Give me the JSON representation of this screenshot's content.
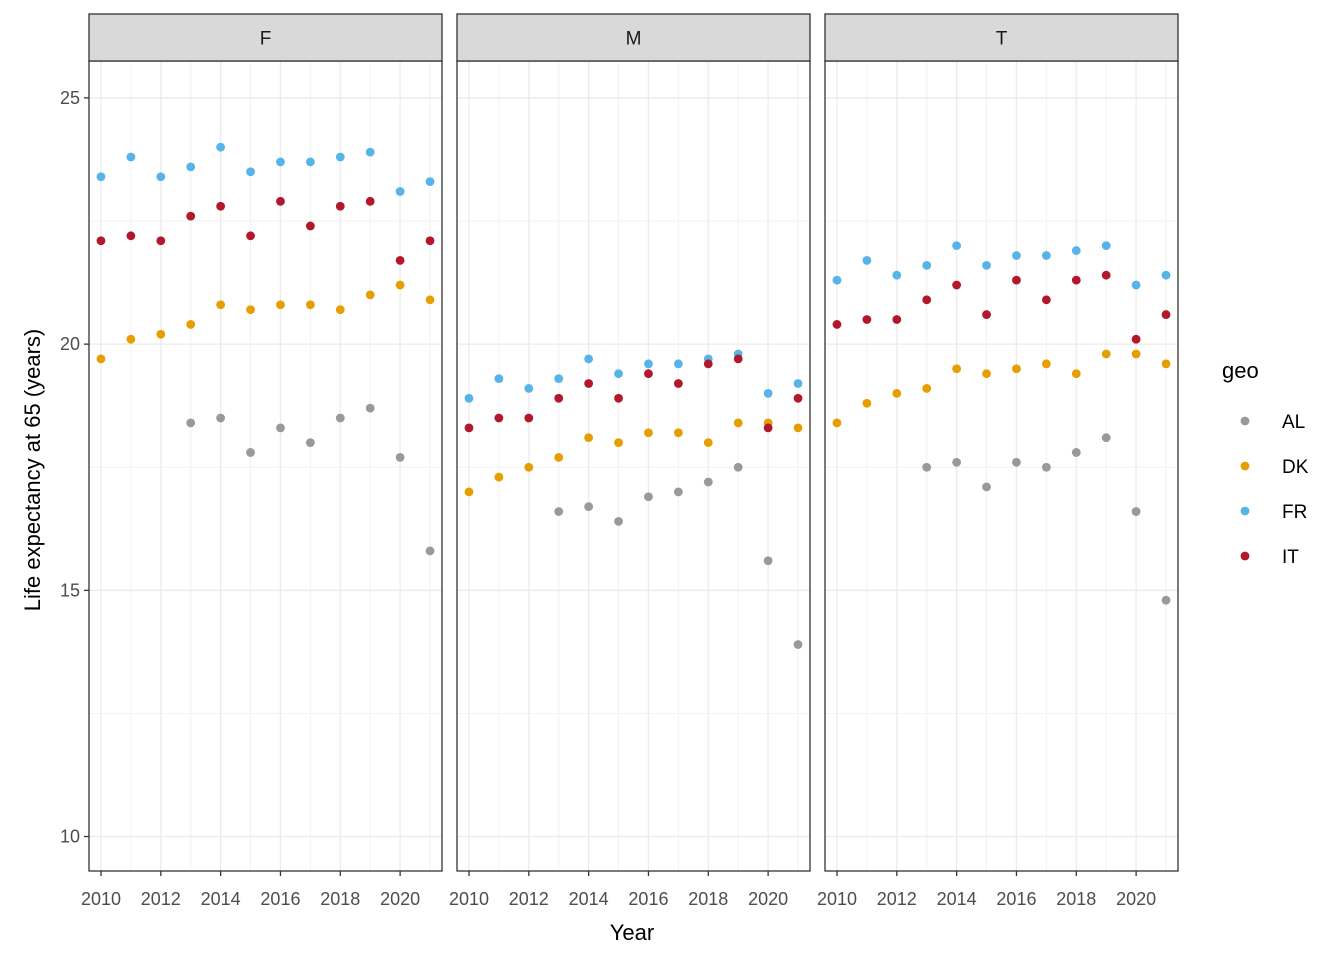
{
  "chart_data": {
    "type": "scatter",
    "facets": [
      "F",
      "M",
      "T"
    ],
    "xlabel": "Year",
    "ylabel": "Life expectancy at 65 (years)",
    "xlim": [
      2009.6,
      2021.4
    ],
    "ylim": [
      9.3,
      25.75
    ],
    "xticks": [
      2010,
      2012,
      2014,
      2016,
      2018,
      2020
    ],
    "yticks": [
      10,
      15,
      20,
      25
    ],
    "legend": {
      "title": "geo",
      "position": "right",
      "entries": [
        "AL",
        "DK",
        "FR",
        "IT"
      ]
    },
    "colors": {
      "AL": "#999999",
      "DK": "#E69F00",
      "FR": "#56B4E9",
      "IT": "#B2182B"
    },
    "series": [
      {
        "facet": "F",
        "data": {
          "AL": {
            "x": [
              2013,
              2014,
              2015,
              2016,
              2017,
              2018,
              2019,
              2020,
              2021
            ],
            "y": [
              18.4,
              18.5,
              17.8,
              18.3,
              18.0,
              18.5,
              18.7,
              17.7,
              15.8
            ]
          },
          "DK": {
            "x": [
              2010,
              2011,
              2012,
              2013,
              2014,
              2015,
              2016,
              2017,
              2018,
              2019,
              2020,
              2021
            ],
            "y": [
              19.7,
              20.1,
              20.2,
              20.4,
              20.8,
              20.7,
              20.8,
              20.8,
              20.7,
              21.0,
              21.2,
              20.9
            ]
          },
          "FR": {
            "x": [
              2010,
              2011,
              2012,
              2013,
              2014,
              2015,
              2016,
              2017,
              2018,
              2019,
              2020,
              2021
            ],
            "y": [
              23.4,
              23.8,
              23.4,
              23.6,
              24.0,
              23.5,
              23.7,
              23.7,
              23.8,
              23.9,
              23.1,
              23.3
            ]
          },
          "IT": {
            "x": [
              2010,
              2011,
              2012,
              2013,
              2014,
              2015,
              2016,
              2017,
              2018,
              2019,
              2020,
              2021
            ],
            "y": [
              22.1,
              22.2,
              22.1,
              22.6,
              22.8,
              22.2,
              22.9,
              22.4,
              22.8,
              22.9,
              21.7,
              22.1
            ]
          }
        }
      },
      {
        "facet": "M",
        "data": {
          "AL": {
            "x": [
              2013,
              2014,
              2015,
              2016,
              2017,
              2018,
              2019,
              2020,
              2021
            ],
            "y": [
              16.6,
              16.7,
              16.4,
              16.9,
              17.0,
              17.2,
              17.5,
              15.6,
              13.9
            ]
          },
          "DK": {
            "x": [
              2010,
              2011,
              2012,
              2013,
              2014,
              2015,
              2016,
              2017,
              2018,
              2019,
              2020,
              2021
            ],
            "y": [
              17.0,
              17.3,
              17.5,
              17.7,
              18.1,
              18.0,
              18.2,
              18.2,
              18.0,
              18.4,
              18.4,
              18.3
            ]
          },
          "FR": {
            "x": [
              2010,
              2011,
              2012,
              2013,
              2014,
              2015,
              2016,
              2017,
              2018,
              2019,
              2020,
              2021
            ],
            "y": [
              18.9,
              19.3,
              19.1,
              19.3,
              19.7,
              19.4,
              19.6,
              19.6,
              19.7,
              19.8,
              19.0,
              19.2
            ]
          },
          "IT": {
            "x": [
              2010,
              2011,
              2012,
              2013,
              2014,
              2015,
              2016,
              2017,
              2018,
              2019,
              2020,
              2021
            ],
            "y": [
              18.3,
              18.5,
              18.5,
              18.9,
              19.2,
              18.9,
              19.4,
              19.2,
              19.6,
              19.7,
              18.3,
              18.9
            ]
          }
        }
      },
      {
        "facet": "T",
        "data": {
          "AL": {
            "x": [
              2013,
              2014,
              2015,
              2016,
              2017,
              2018,
              2019,
              2020,
              2021
            ],
            "y": [
              17.5,
              17.6,
              17.1,
              17.6,
              17.5,
              17.8,
              18.1,
              16.6,
              14.8
            ]
          },
          "DK": {
            "x": [
              2010,
              2011,
              2012,
              2013,
              2014,
              2015,
              2016,
              2017,
              2018,
              2019,
              2020,
              2021
            ],
            "y": [
              18.4,
              18.8,
              19.0,
              19.1,
              19.5,
              19.4,
              19.5,
              19.6,
              19.4,
              19.8,
              19.8,
              19.6
            ]
          },
          "FR": {
            "x": [
              2010,
              2011,
              2012,
              2013,
              2014,
              2015,
              2016,
              2017,
              2018,
              2019,
              2020,
              2021
            ],
            "y": [
              21.3,
              21.7,
              21.4,
              21.6,
              22.0,
              21.6,
              21.8,
              21.8,
              21.9,
              22.0,
              21.2,
              21.4
            ]
          },
          "IT": {
            "x": [
              2010,
              2011,
              2012,
              2013,
              2014,
              2015,
              2016,
              2017,
              2018,
              2019,
              2020,
              2021
            ],
            "y": [
              20.4,
              20.5,
              20.5,
              20.9,
              21.2,
              20.6,
              21.3,
              20.9,
              21.3,
              21.4,
              20.1,
              20.6
            ]
          }
        }
      }
    ]
  }
}
